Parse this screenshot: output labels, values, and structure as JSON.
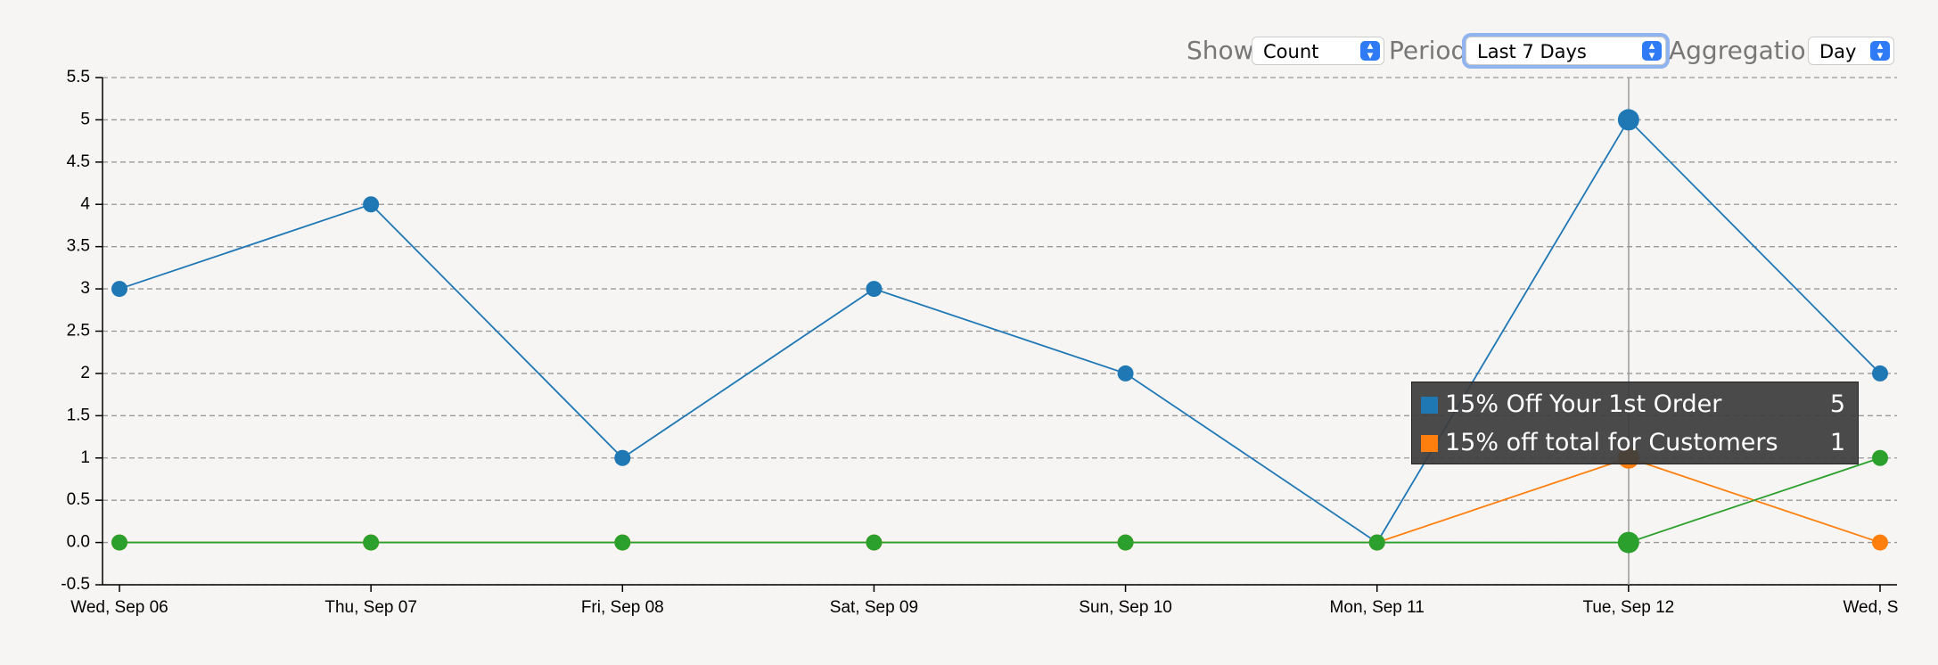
{
  "controls": {
    "show_label": "Show",
    "show_value": "Count",
    "period_label": "Period",
    "period_value": "Last 7 Days",
    "aggregation_label": "Aggregation",
    "aggregation_value": "Day"
  },
  "chart_data": {
    "type": "line",
    "categories": [
      "Wed, Sep 06",
      "Thu, Sep 07",
      "Fri, Sep 08",
      "Sat, Sep 09",
      "Sun, Sep 10",
      "Mon, Sep 11",
      "Tue, Sep 12",
      "Wed, Sep"
    ],
    "series": [
      {
        "name": "15% Off Your 1st Order",
        "color": "#1f77b4",
        "values": [
          3,
          4,
          1,
          3,
          2,
          0,
          5,
          2
        ]
      },
      {
        "name": "15% off total for Customers",
        "color": "#ff7f0e",
        "values": [
          0,
          0,
          0,
          0,
          0,
          0,
          1,
          0
        ]
      },
      {
        "color": "#2ca02c",
        "values": [
          0,
          0,
          0,
          0,
          0,
          0,
          0,
          1
        ]
      }
    ],
    "ylim": [
      -0.5,
      5.5
    ],
    "yticks": [
      -0.5,
      {
        "value": 0,
        "label": "0.0"
      },
      0.5,
      1,
      1.5,
      2,
      2.5,
      3,
      3.5,
      4,
      4.5,
      5,
      5.5
    ],
    "grid": true
  }
}
